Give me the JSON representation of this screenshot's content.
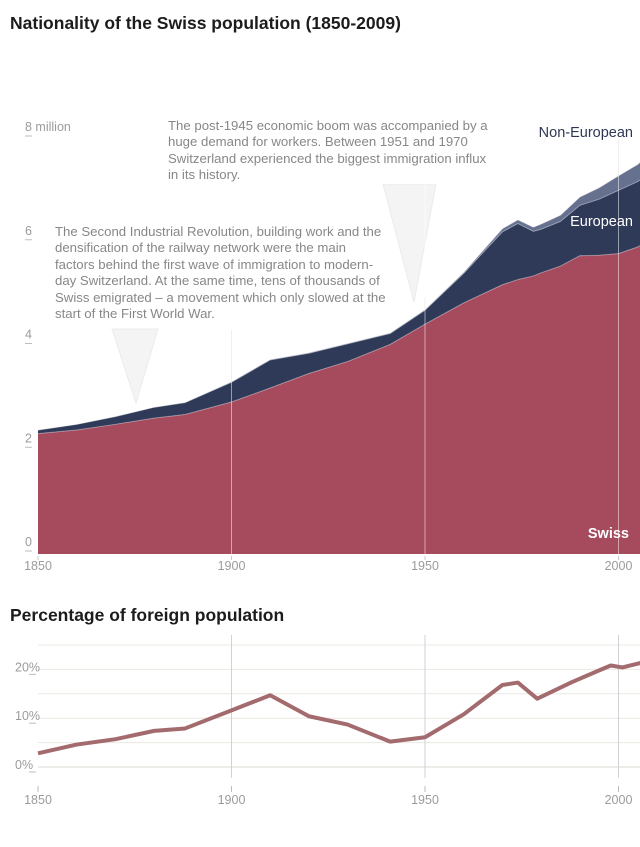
{
  "population_chart": {
    "title": "Nationality of the Swiss population (1850-2009)",
    "series_labels": [
      "Swiss",
      "European",
      "Non-European"
    ],
    "annotations": [
      {
        "text": "The post-1945 economic boom was accompanied by a huge demand for workers. Between 1951 and 1970 Switzerland experienced the biggest immigration influx in its history."
      },
      {
        "text": "The Second Industrial Revolution, building work and the densification of the railway network were the main factors behind the first wave of immigration to modern-day Switzerland. At the same time, tens of thousands of Swiss emigrated – a movement which only slowed at the start of the First World War."
      }
    ]
  },
  "percentage_chart": {
    "title": "Percentage of foreign population"
  },
  "colors": {
    "swiss": "#a64a5e",
    "european": "#2f3a58",
    "non_european": "#66708f",
    "percent_line": "#a36b6e",
    "axis_text": "#9b9b9b",
    "annotation_text": "#878787",
    "title_text": "#1c1c1c",
    "gridline_gray": "#dedede",
    "gridline_warm": "#ece8e1",
    "baseline_warm": "#dcd8d2",
    "tick_gray": "#bdbdbd"
  },
  "chart_data": [
    {
      "type": "area",
      "title": "Nationality of the Swiss population (1850-2009)",
      "stacked": true,
      "unit": "million people",
      "x": [
        1850,
        1860,
        1870,
        1880,
        1888,
        1900,
        1910,
        1920,
        1930,
        1941,
        1950,
        1960,
        1970,
        1974,
        1978,
        1980,
        1985,
        1990,
        1995,
        2000,
        2005,
        2009
      ],
      "series": [
        {
          "name": "Swiss",
          "color_key": "swiss",
          "values": [
            2.32,
            2.39,
            2.5,
            2.62,
            2.69,
            2.93,
            3.2,
            3.48,
            3.71,
            4.04,
            4.43,
            4.84,
            5.19,
            5.29,
            5.36,
            5.42,
            5.55,
            5.75,
            5.76,
            5.79,
            5.92,
            6.1
          ]
        },
        {
          "name": "European",
          "color_key": "european",
          "values": [
            0.07,
            0.11,
            0.15,
            0.21,
            0.23,
            0.38,
            0.54,
            0.39,
            0.34,
            0.21,
            0.27,
            0.57,
            1.02,
            1.08,
            0.86,
            0.84,
            0.86,
            0.97,
            1.08,
            1.22,
            1.26,
            1.3
          ]
        },
        {
          "name": "Non-European",
          "color_key": "non_european",
          "values": [
            0.0,
            0.0,
            0.0,
            0.0,
            0.0,
            0.01,
            0.01,
            0.01,
            0.01,
            0.01,
            0.01,
            0.02,
            0.06,
            0.07,
            0.08,
            0.1,
            0.12,
            0.16,
            0.22,
            0.28,
            0.33,
            0.39
          ]
        }
      ],
      "xlim": [
        1850,
        2009
      ],
      "ylim": [
        0,
        8
      ],
      "y_ticks": [
        {
          "v": 8,
          "label": "8 million"
        },
        {
          "v": 6,
          "label": "6"
        },
        {
          "v": 4,
          "label": "4"
        },
        {
          "v": 2,
          "label": "2"
        },
        {
          "v": 0,
          "label": "0"
        }
      ],
      "x_ticks": [
        {
          "v": 1850,
          "label": "1850"
        },
        {
          "v": 1900,
          "label": "1900"
        },
        {
          "v": 1950,
          "label": "1950"
        },
        {
          "v": 2000,
          "label": "2000"
        }
      ],
      "grid": "vertical-only",
      "legend_position": "inline-right"
    },
    {
      "type": "line",
      "title": "Percentage of foreign population",
      "unit": "percent",
      "x": [
        1850,
        1860,
        1870,
        1880,
        1888,
        1900,
        1910,
        1920,
        1930,
        1941,
        1950,
        1960,
        1970,
        1974,
        1979,
        1988,
        1995,
        1998,
        2001,
        2009
      ],
      "values": [
        2.8,
        4.6,
        5.7,
        7.4,
        7.9,
        11.6,
        14.7,
        10.4,
        8.7,
        5.2,
        6.1,
        10.8,
        16.8,
        17.3,
        14.0,
        17.4,
        19.8,
        20.8,
        20.4,
        22.0
      ],
      "xlim": [
        1850,
        2009
      ],
      "ylim": [
        0,
        25
      ],
      "gridlines_every": 5,
      "y_ticks": [
        {
          "v": 20,
          "label": "20%"
        },
        {
          "v": 10,
          "label": "10%"
        },
        {
          "v": 0,
          "label": "0%"
        }
      ],
      "x_ticks": [
        {
          "v": 1850,
          "label": "1850"
        },
        {
          "v": 1900,
          "label": "1900"
        },
        {
          "v": 1950,
          "label": "1950"
        },
        {
          "v": 2000,
          "label": "2000"
        }
      ],
      "grid": "both"
    }
  ]
}
